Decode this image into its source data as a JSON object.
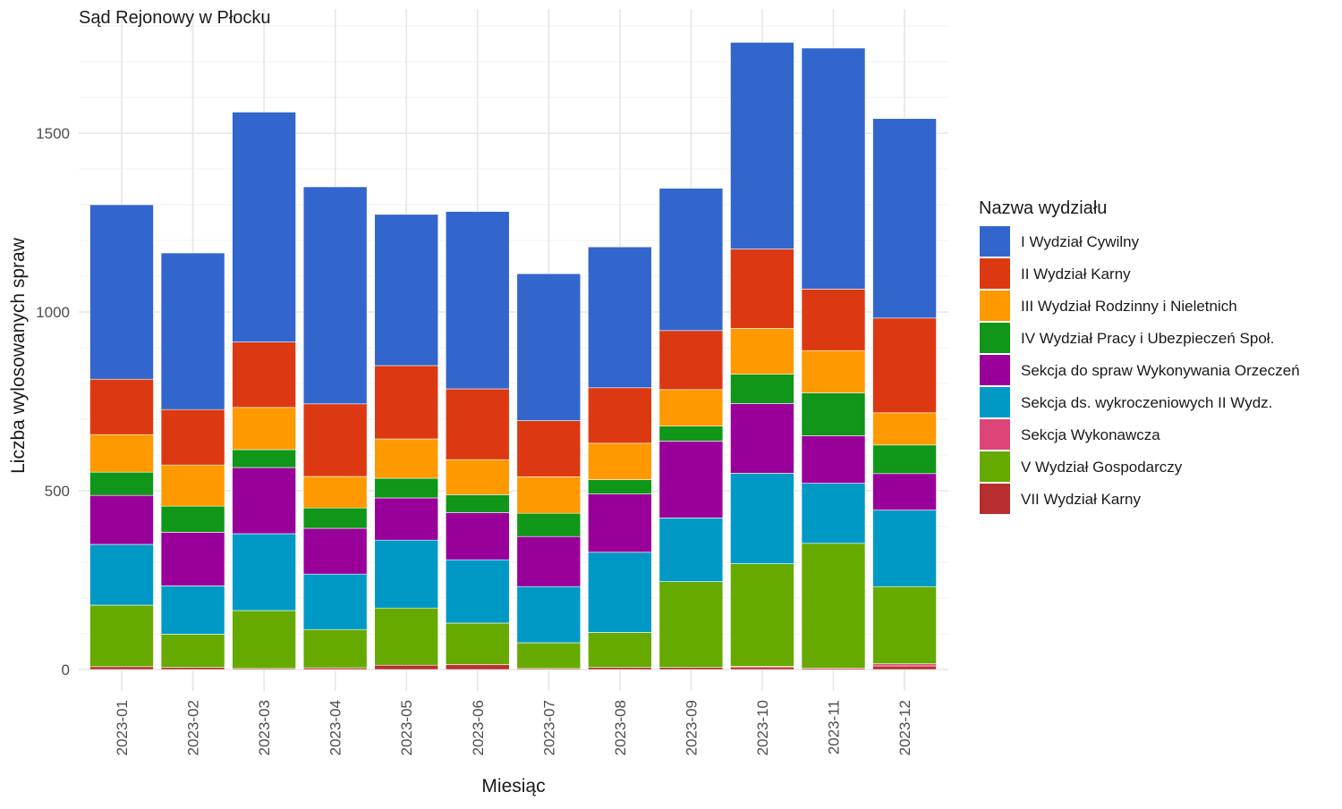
{
  "chart_data": {
    "type": "bar",
    "stacked": true,
    "title": "Sąd Rejonowy w Płocku",
    "xlabel": "Miesiąc",
    "ylabel": "Liczba wylosowanych spraw",
    "ylim": [
      -60,
      1850
    ],
    "yticks": [
      0,
      500,
      1000,
      1500
    ],
    "grid": true,
    "legend_title": "Nazwa wydziału",
    "legend_position": "right",
    "categories": [
      "2023-01",
      "2023-02",
      "2023-03",
      "2023-04",
      "2023-05",
      "2023-06",
      "2023-07",
      "2023-08",
      "2023-09",
      "2023-10",
      "2023-11",
      "2023-12"
    ],
    "series": [
      {
        "name": "VII Wydział Karny",
        "color": "#b82e2e",
        "values": [
          8,
          6,
          3,
          5,
          12,
          14,
          3,
          6,
          6,
          7,
          4,
          10
        ]
      },
      {
        "name": "Sekcja Wykonawcza",
        "color": "#dd4477",
        "values": [
          0,
          0,
          0,
          0,
          0,
          0,
          0,
          0,
          0,
          2,
          0,
          6
        ]
      },
      {
        "name": "V Wydział Gospodarczy",
        "color": "#66aa00",
        "values": [
          172,
          93,
          162,
          107,
          160,
          116,
          72,
          98,
          240,
          287,
          349,
          216
        ]
      },
      {
        "name": "Sekcja ds. wykroczeniowych II Wydz.",
        "color": "#0099c6",
        "values": [
          170,
          135,
          215,
          155,
          190,
          177,
          157,
          224,
          178,
          253,
          168,
          214
        ]
      },
      {
        "name": "Sekcja do spraw Wykonywania Orzeczeń",
        "color": "#990099",
        "values": [
          137,
          150,
          185,
          128,
          118,
          132,
          140,
          163,
          215,
          195,
          133,
          102
        ]
      },
      {
        "name": "IV Wydział Pracy i Ubezpieczeń Społ.",
        "color": "#109618",
        "values": [
          65,
          73,
          50,
          57,
          55,
          50,
          65,
          40,
          42,
          82,
          120,
          80
        ]
      },
      {
        "name": "III Wydział Rodzinny i Nieletnich",
        "color": "#ff9900",
        "values": [
          105,
          115,
          118,
          88,
          110,
          98,
          102,
          102,
          102,
          128,
          118,
          90
        ]
      },
      {
        "name": "II Wydział Karny",
        "color": "#dc3912",
        "values": [
          155,
          155,
          183,
          203,
          205,
          198,
          157,
          155,
          165,
          222,
          172,
          265
        ]
      },
      {
        "name": "I Wydział Cywilny",
        "color": "#3366cc",
        "values": [
          488,
          438,
          643,
          607,
          423,
          496,
          411,
          394,
          398,
          578,
          674,
          558
        ]
      }
    ],
    "legend_order": [
      "I Wydział Cywilny",
      "II Wydział Karny",
      "III Wydział Rodzinny i Nieletnich",
      "IV Wydział Pracy i Ubezpieczeń Społ.",
      "Sekcja do spraw Wykonywania Orzeczeń",
      "Sekcja ds. wykroczeniowych II Wydz.",
      "Sekcja Wykonawcza",
      "V Wydział Gospodarczy",
      "VII Wydział Karny"
    ]
  }
}
